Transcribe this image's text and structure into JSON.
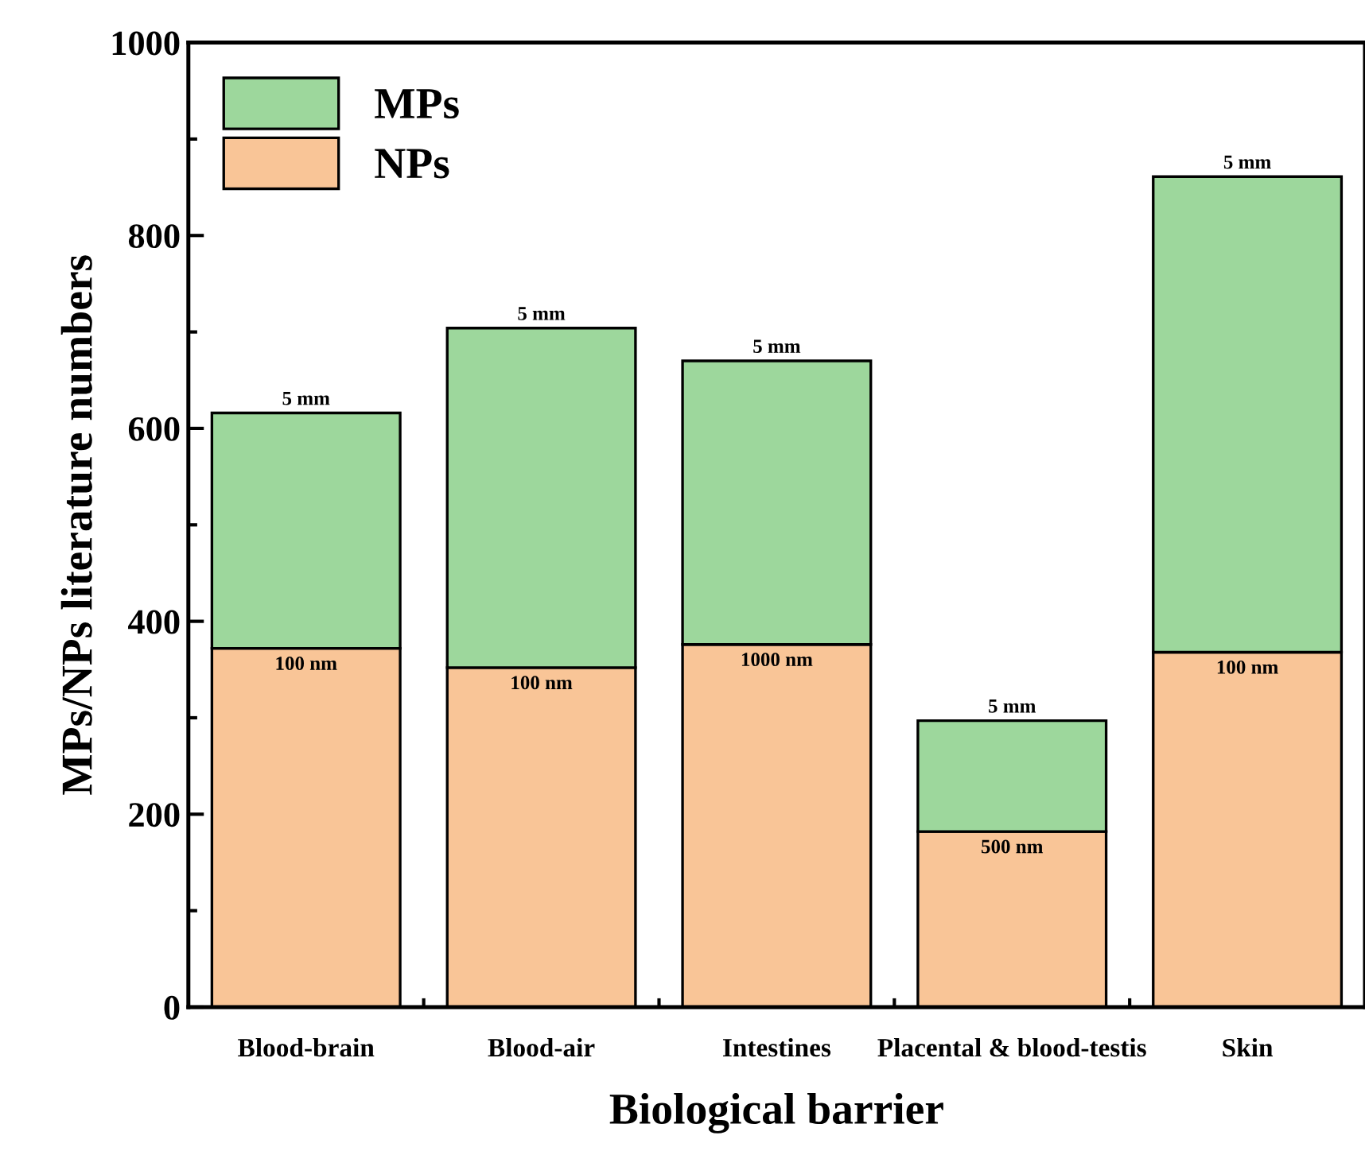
{
  "chart_data": {
    "type": "bar",
    "stacked": true,
    "xlabel": "Biological barrier",
    "ylabel": "MPs/NPs literature numbers",
    "categories": [
      "Blood-brain",
      "Blood-air",
      "Intestines",
      "Placental & blood-testis",
      "Skin"
    ],
    "series": [
      {
        "name": "NPs",
        "color": "#f9c597",
        "values": [
          372,
          352,
          376,
          182,
          368
        ]
      },
      {
        "name": "MPs",
        "color": "#9dd79c",
        "values": [
          244,
          352,
          294,
          115,
          493
        ]
      }
    ],
    "annotations": [
      {
        "text": "100 nm",
        "x": "Blood-brain",
        "y": 372
      },
      {
        "text": "5 mm",
        "x": "Blood-brain",
        "y": 616
      },
      {
        "text": "100 nm",
        "x": "Blood-air",
        "y": 352
      },
      {
        "text": "5 mm",
        "x": "Blood-air",
        "y": 704
      },
      {
        "text": "1000 nm",
        "x": "Intestines",
        "y": 376
      },
      {
        "text": "5 mm",
        "x": "Intestines",
        "y": 670
      },
      {
        "text": "500 nm",
        "x": "Placental & blood-testis",
        "y": 182
      },
      {
        "text": "5 mm",
        "x": "Placental & blood-testis",
        "y": 297
      },
      {
        "text": "100 nm",
        "x": "Skin",
        "y": 368
      },
      {
        "text": "5 mm",
        "x": "Skin",
        "y": 861
      }
    ],
    "ylim": [
      0,
      1000
    ],
    "yticks": [
      0,
      200,
      400,
      600,
      800,
      1000
    ],
    "legend": "top left",
    "grid": false
  }
}
